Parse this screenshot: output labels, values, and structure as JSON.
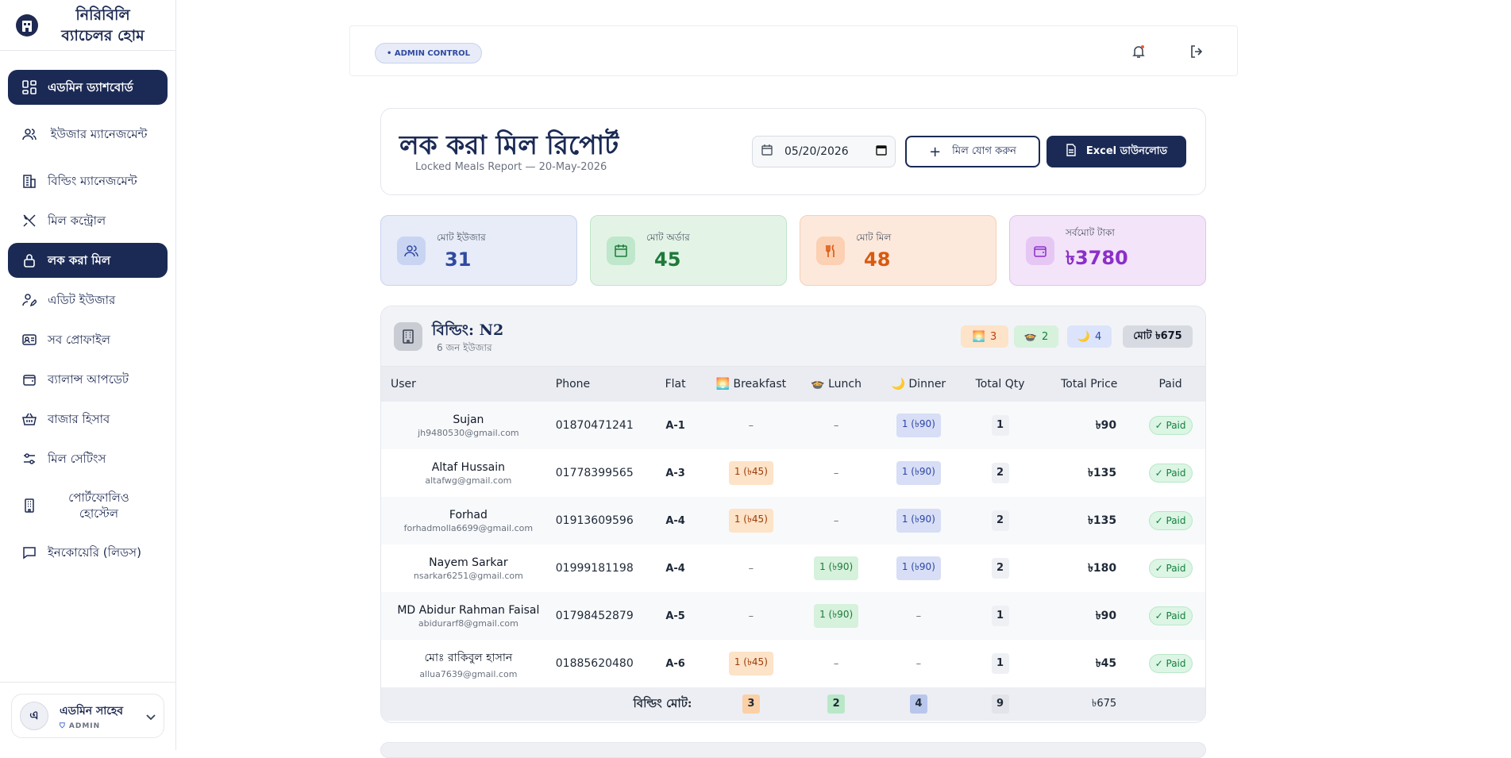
{
  "sidebar": {
    "brand_line1": "নিরিবিলি",
    "brand_line2": "ব্যাচেলর হোম",
    "items": [
      {
        "label": "এডমিন ড্যাশবোর্ড",
        "icon": "dashboard-icon",
        "active": true
      },
      {
        "label": "ইউজার ম্যানেজমেন্ট",
        "icon": "users-icon"
      },
      {
        "label": "বিল্ডিং ম্যানেজমেন্ট",
        "icon": "building-icon"
      },
      {
        "label": "মিল কন্ট্রোল",
        "icon": "utensils-icon"
      },
      {
        "label": "লক করা মিল",
        "icon": "lock-icon",
        "active": true
      },
      {
        "label": "এডিট ইউজার",
        "icon": "user-edit-icon"
      },
      {
        "label": "সব প্রোফাইল",
        "icon": "id-card-icon"
      },
      {
        "label": "ব্যালান্স আপডেট",
        "icon": "wallet-icon"
      },
      {
        "label": "বাজার হিসাব",
        "icon": "basket-icon"
      },
      {
        "label": "মিল সেটিংস",
        "icon": "sliders-icon"
      },
      {
        "label": "পোর্টফোলিও হোস্টেল",
        "icon": "hostel-icon"
      },
      {
        "label": "ইনকোয়েরি (লিডস)",
        "icon": "message-icon"
      }
    ],
    "user": {
      "avatar_letter": "এ",
      "name": "এডমিন সাহেব",
      "role": "ADMIN"
    }
  },
  "topbar": {
    "badge": "• ADMIN CONTROL"
  },
  "header": {
    "title": "লক করা মিল রিপোর্ট",
    "subtitle": "Locked Meals Report — 20-May-2026",
    "date_value": "05/20/2026",
    "add_meal_label": "মিল যোগ করুন",
    "excel_label": "Excel ডাউনলোড"
  },
  "stats": [
    {
      "label": "মোট ইউজার",
      "value": "31",
      "color": "#2f4aa0"
    },
    {
      "label": "মোট অর্ডার",
      "value": "45",
      "color": "#1e7a3a"
    },
    {
      "label": "মোট মিল",
      "value": "48",
      "color": "#d9590f"
    },
    {
      "label": "সর্বমোট টাকা",
      "value": "৳3780",
      "color": "#8b2fc9"
    }
  ],
  "building": {
    "title": "বিল্ডিং: N2",
    "subtitle": "6 জন ইউজার",
    "chips": {
      "breakfast": "3",
      "lunch": "2",
      "dinner": "4",
      "total": "মোট ৳675"
    },
    "columns": [
      "User",
      "Phone",
      "Flat",
      "🌅 Breakfast",
      "🍲 Lunch",
      "🌙 Dinner",
      "Total Qty",
      "Total Price",
      "Paid"
    ],
    "rows": [
      {
        "name": "Sujan",
        "email": "jh9480530@gmail.com",
        "phone": "01870471241",
        "flat": "A-1",
        "breakfast": "–",
        "lunch": "–",
        "dinner": "1 (৳90)",
        "qty": "1",
        "price": "৳90",
        "paid": "✓ Paid"
      },
      {
        "name": "Altaf Hussain",
        "email": "altafwg@gmail.com",
        "phone": "01778399565",
        "flat": "A-3",
        "breakfast": "1 (৳45)",
        "lunch": "–",
        "dinner": "1 (৳90)",
        "qty": "2",
        "price": "৳135",
        "paid": "✓ Paid"
      },
      {
        "name": "Forhad",
        "email": "forhadmolla6699@gmail.com",
        "phone": "01913609596",
        "flat": "A-4",
        "breakfast": "1 (৳45)",
        "lunch": "–",
        "dinner": "1 (৳90)",
        "qty": "2",
        "price": "৳135",
        "paid": "✓ Paid"
      },
      {
        "name": "Nayem Sarkar",
        "email": "nsarkar6251@gmail.com",
        "phone": "01999181198",
        "flat": "A-4",
        "breakfast": "–",
        "lunch": "1 (৳90)",
        "dinner": "1 (৳90)",
        "qty": "2",
        "price": "৳180",
        "paid": "✓ Paid"
      },
      {
        "name": "MD Abidur Rahman Faisal",
        "email": "abidurarf8@gmail.com",
        "phone": "01798452879",
        "flat": "A-5",
        "breakfast": "–",
        "lunch": "1 (৳90)",
        "dinner": "–",
        "qty": "1",
        "price": "৳90",
        "paid": "✓ Paid"
      },
      {
        "name": "মোঃ রাকিবুল হাসান",
        "email": "allua7639@gmail.com",
        "phone": "01885620480",
        "flat": "A-6",
        "breakfast": "1 (৳45)",
        "lunch": "–",
        "dinner": "–",
        "qty": "1",
        "price": "৳45",
        "paid": "✓ Paid"
      }
    ],
    "footer": {
      "label": "বিল্ডিং মোট:",
      "breakfast": "3",
      "lunch": "2",
      "dinner": "4",
      "qty": "9",
      "price": "৳675"
    }
  }
}
